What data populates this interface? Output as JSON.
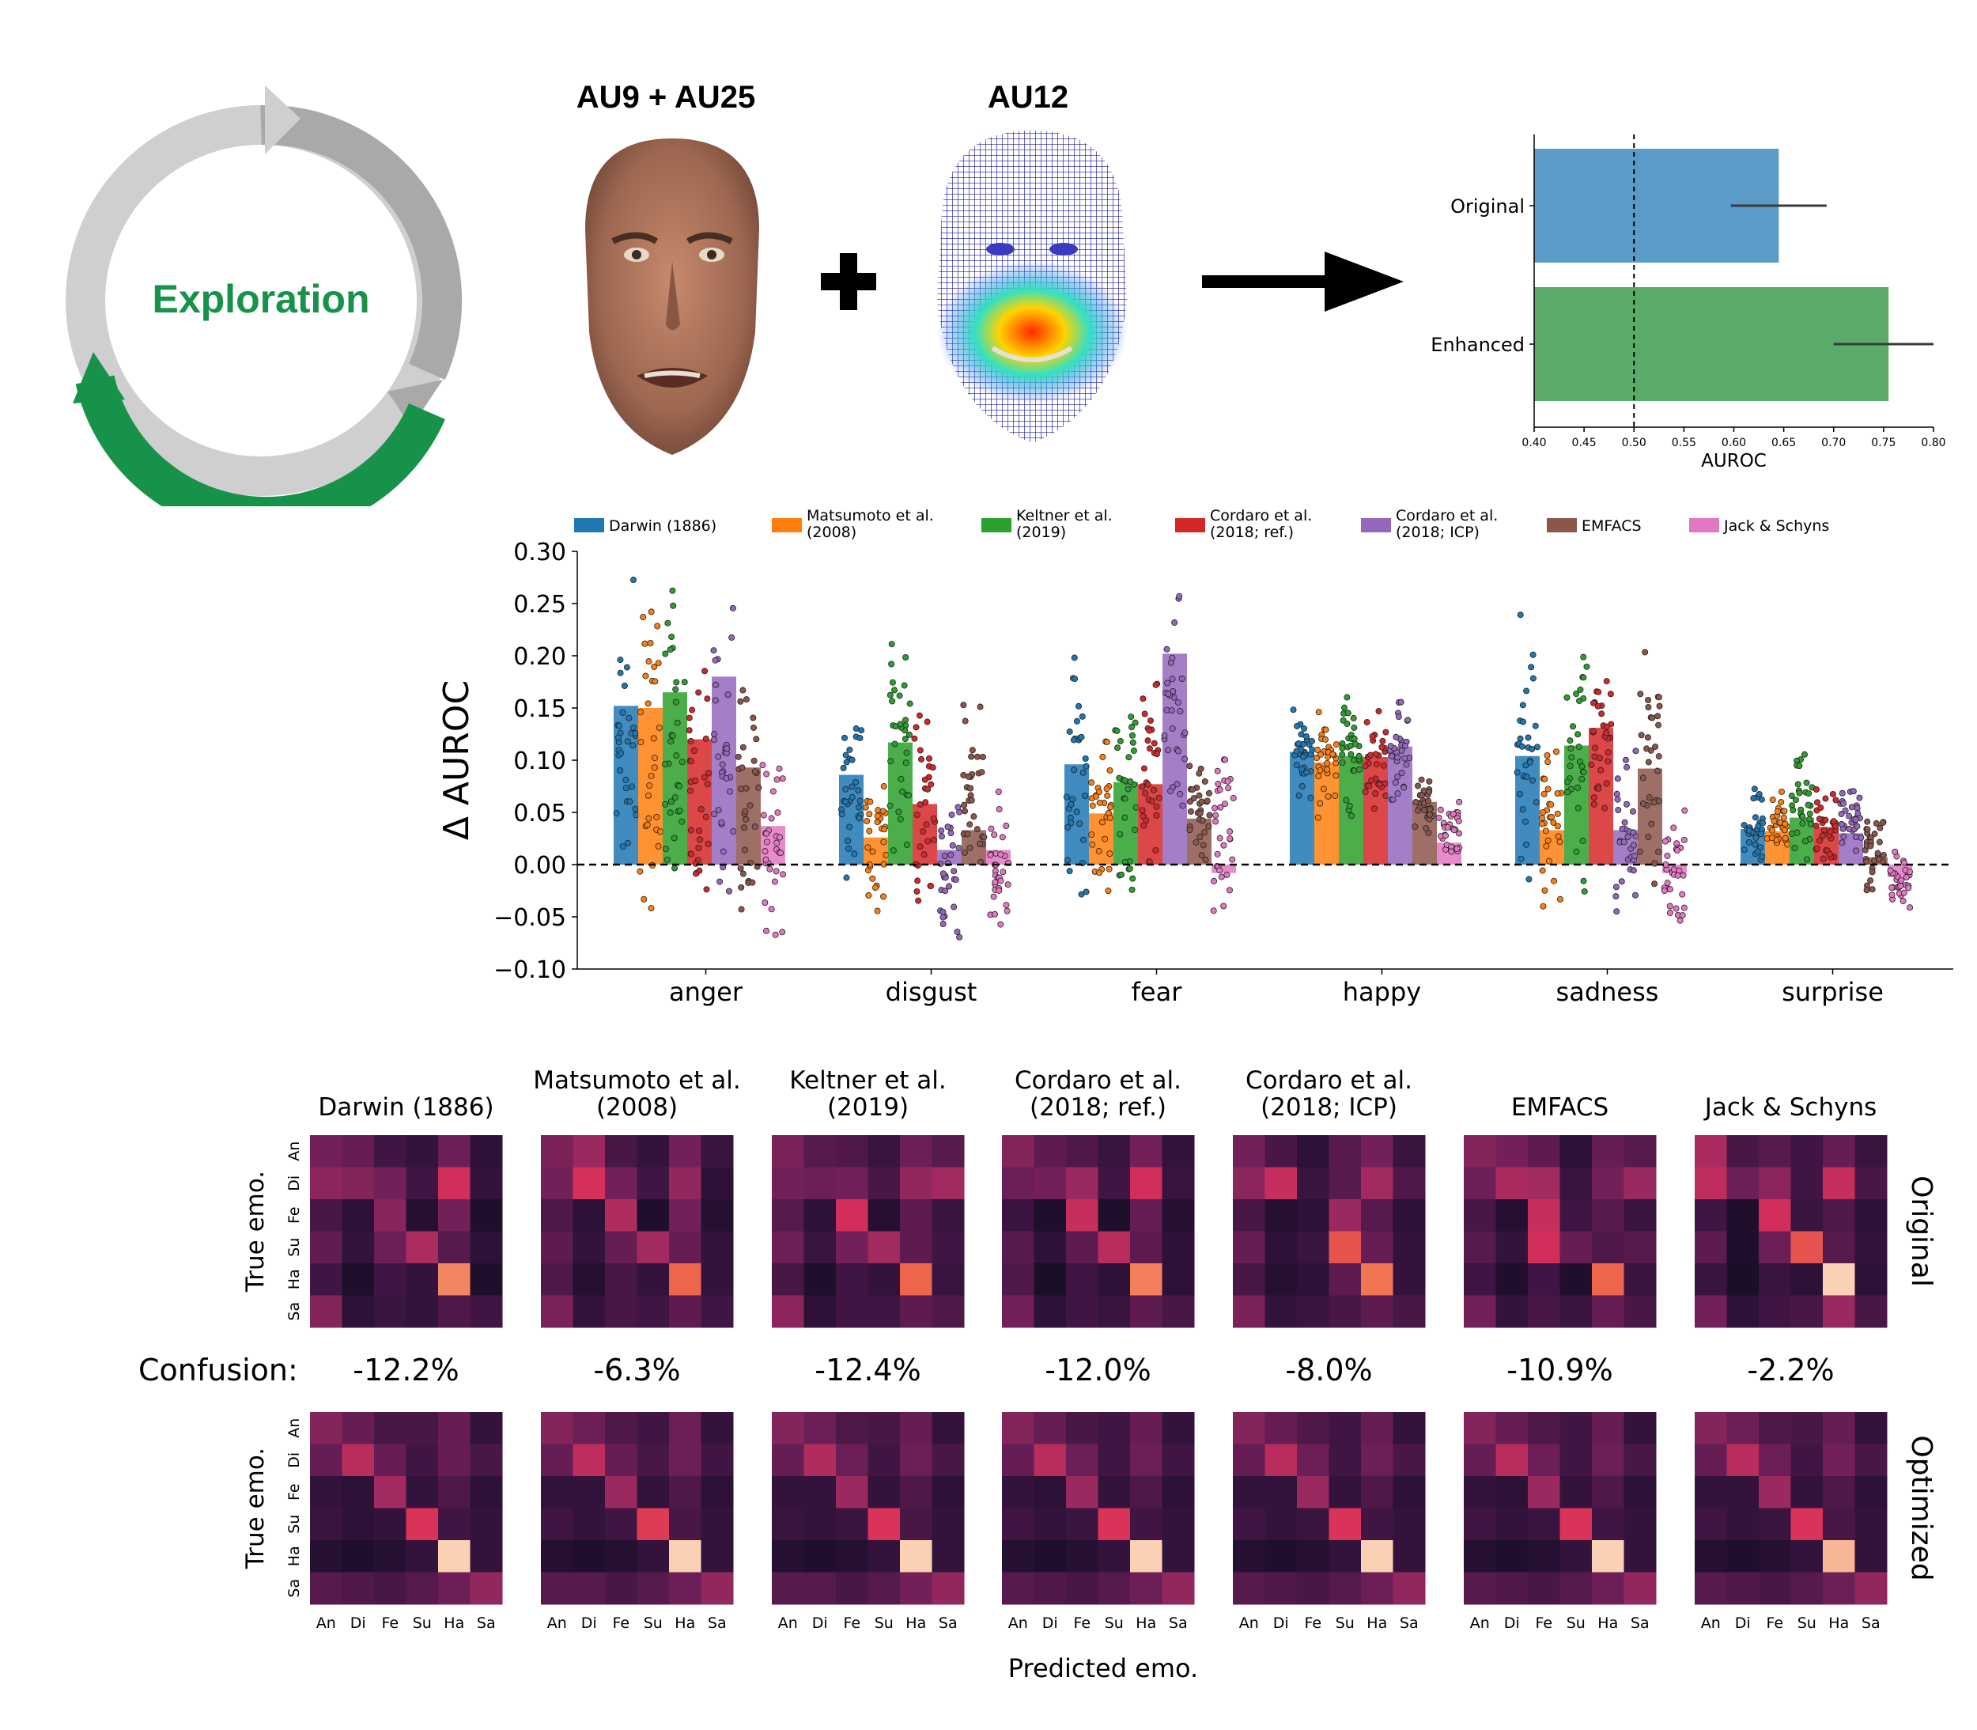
{
  "top": {
    "cycle_label": "Exploration",
    "face1_title": "AU9 + AU25",
    "face2_title": "AU12",
    "colors": {
      "gray_light": "#cfcfcf",
      "gray_dark": "#a9a9a9",
      "green": "#17924a"
    }
  },
  "chart_data": [
    {
      "type": "bar",
      "orientation": "horizontal",
      "categories": [
        "Original",
        "Enhanced"
      ],
      "values": [
        0.645,
        0.755
      ],
      "errors": [
        [
          0.597,
          0.693
        ],
        [
          0.7,
          0.8
        ]
      ],
      "colors": [
        "#5b9bc7",
        "#5aab6a"
      ],
      "xlabel": "AUROC",
      "xlim": [
        0.4,
        0.8
      ],
      "xticks": [
        "0.40",
        "0.45",
        "0.50",
        "0.55",
        "0.60",
        "0.65",
        "0.70",
        "0.75",
        "0.80"
      ],
      "reference_line": 0.5
    },
    {
      "type": "bar",
      "ylabel": "Δ AUROC",
      "ylim": [
        -0.1,
        0.3
      ],
      "yticks": [
        "−0.10",
        "−0.05",
        "0.00",
        "0.05",
        "0.10",
        "0.15",
        "0.20",
        "0.25",
        "0.30"
      ],
      "categories": [
        "anger",
        "disgust",
        "fear",
        "happy",
        "sadness",
        "surprise"
      ],
      "legend_position": "top",
      "series": [
        {
          "name": "Darwin (1886)",
          "color": "#1f77b4",
          "values": [
            0.152,
            0.086,
            0.096,
            0.108,
            0.104,
            0.034
          ],
          "spread": [
            -0.04,
            0.29,
            -0.04,
            0.19,
            -0.04,
            0.21,
            0.055,
            0.16,
            -0.03,
            0.25,
            0.0,
            0.075
          ]
        },
        {
          "name": "Matsumoto et al.\n(2008)",
          "color": "#ff7f0e",
          "values": [
            0.15,
            0.026,
            0.049,
            0.098,
            0.033,
            0.032
          ],
          "spread": [
            -0.06,
            0.295,
            -0.05,
            0.09,
            -0.04,
            0.14,
            0.04,
            0.15,
            -0.045,
            0.125,
            0.0,
            0.075
          ]
        },
        {
          "name": "Keltner et al.\n(2019)",
          "color": "#2ca02c",
          "values": [
            0.165,
            0.117,
            0.079,
            0.104,
            0.114,
            0.045
          ],
          "spread": [
            -0.045,
            0.29,
            0.0,
            0.225,
            -0.04,
            0.19,
            0.04,
            0.17,
            -0.03,
            0.225,
            0.0,
            0.115
          ]
        },
        {
          "name": "Cordaro et al.\n(2018; ref.)",
          "color": "#d62728",
          "values": [
            0.12,
            0.058,
            0.077,
            0.103,
            0.131,
            0.036
          ],
          "spread": [
            -0.045,
            0.205,
            -0.055,
            0.165,
            -0.02,
            0.225,
            0.045,
            0.155,
            0.03,
            0.22,
            0.0,
            0.09
          ]
        },
        {
          "name": "Cordaro et al.\n(2018; ICP)",
          "color": "#9467bd",
          "values": [
            0.18,
            0.014,
            0.202,
            0.113,
            0.033,
            0.03
          ],
          "spread": [
            -0.05,
            0.285,
            -0.075,
            0.075,
            0.03,
            0.295,
            0.05,
            0.17,
            -0.06,
            0.115,
            0.0,
            0.085
          ]
        },
        {
          "name": "EMFACS",
          "color": "#8c564b",
          "values": [
            0.093,
            0.033,
            0.044,
            0.06,
            0.092,
            0.007
          ],
          "spread": [
            -0.075,
            0.185,
            -0.025,
            0.17,
            -0.005,
            0.105,
            0.025,
            0.09,
            -0.025,
            0.21,
            -0.035,
            0.06
          ]
        },
        {
          "name": "Jack & Schyns",
          "color": "#e377c2",
          "values": [
            0.037,
            0.014,
            -0.008,
            0.021,
            -0.008,
            -0.012
          ],
          "spread": [
            -0.09,
            0.13,
            -0.07,
            0.075,
            -0.06,
            0.115,
            0.0,
            0.065,
            -0.075,
            0.07,
            -0.045,
            0.015
          ]
        }
      ]
    },
    {
      "type": "heatmap",
      "xlabel": "Predicted emo.",
      "ylabel": "True emo.",
      "row_titles": [
        "Original",
        "Optimized"
      ],
      "confusion_label": "Confusion:",
      "x_ticks": [
        "An",
        "Di",
        "Fe",
        "Su",
        "Ha",
        "Sa"
      ],
      "y_ticks": [
        "An",
        "Di",
        "Fe",
        "Su",
        "Ha",
        "Sa"
      ],
      "colormap": [
        "#0d0b1e",
        "#3a1440",
        "#6e1f57",
        "#a52b61",
        "#d92f5a",
        "#f06b4a",
        "#f6a57d",
        "#fbe2c9"
      ],
      "models": [
        {
          "title": "Darwin (1886)",
          "confusion": "-12.2%",
          "original": [
            [
              0.3,
              0.26,
              0.16,
              0.12,
              0.28,
              0.1
            ],
            [
              0.36,
              0.34,
              0.3,
              0.16,
              0.55,
              0.12
            ],
            [
              0.18,
              0.1,
              0.35,
              0.08,
              0.3,
              0.06
            ],
            [
              0.25,
              0.12,
              0.28,
              0.45,
              0.22,
              0.1
            ],
            [
              0.16,
              0.06,
              0.16,
              0.12,
              0.78,
              0.06
            ],
            [
              0.34,
              0.1,
              0.14,
              0.12,
              0.2,
              0.16
            ]
          ],
          "optimized": [
            [
              0.34,
              0.26,
              0.18,
              0.18,
              0.26,
              0.12
            ],
            [
              0.26,
              0.48,
              0.26,
              0.16,
              0.26,
              0.18
            ],
            [
              0.12,
              0.1,
              0.42,
              0.12,
              0.2,
              0.1
            ],
            [
              0.14,
              0.1,
              0.12,
              0.58,
              0.16,
              0.12
            ],
            [
              0.08,
              0.06,
              0.08,
              0.12,
              0.96,
              0.12
            ],
            [
              0.22,
              0.2,
              0.18,
              0.22,
              0.28,
              0.38
            ]
          ]
        },
        {
          "title": "Matsumoto et al.\n(2008)",
          "confusion": "-6.3%",
          "original": [
            [
              0.32,
              0.4,
              0.18,
              0.12,
              0.3,
              0.14
            ],
            [
              0.3,
              0.56,
              0.3,
              0.16,
              0.38,
              0.1
            ],
            [
              0.2,
              0.1,
              0.46,
              0.06,
              0.3,
              0.08
            ],
            [
              0.24,
              0.12,
              0.26,
              0.42,
              0.26,
              0.12
            ],
            [
              0.2,
              0.08,
              0.18,
              0.12,
              0.7,
              0.12
            ],
            [
              0.32,
              0.12,
              0.18,
              0.16,
              0.24,
              0.16
            ]
          ],
          "optimized": [
            [
              0.34,
              0.28,
              0.2,
              0.16,
              0.28,
              0.12
            ],
            [
              0.26,
              0.5,
              0.26,
              0.18,
              0.28,
              0.16
            ],
            [
              0.12,
              0.12,
              0.4,
              0.12,
              0.2,
              0.1
            ],
            [
              0.16,
              0.12,
              0.16,
              0.6,
              0.18,
              0.12
            ],
            [
              0.08,
              0.06,
              0.08,
              0.12,
              0.96,
              0.12
            ],
            [
              0.22,
              0.22,
              0.18,
              0.22,
              0.28,
              0.38
            ]
          ]
        },
        {
          "title": "Keltner et al.\n(2019)",
          "confusion": "-12.4%",
          "original": [
            [
              0.32,
              0.22,
              0.2,
              0.14,
              0.28,
              0.22
            ],
            [
              0.3,
              0.28,
              0.3,
              0.18,
              0.38,
              0.42
            ],
            [
              0.22,
              0.1,
              0.55,
              0.08,
              0.24,
              0.14
            ],
            [
              0.28,
              0.14,
              0.3,
              0.42,
              0.24,
              0.16
            ],
            [
              0.18,
              0.06,
              0.16,
              0.12,
              0.7,
              0.14
            ],
            [
              0.36,
              0.1,
              0.16,
              0.16,
              0.24,
              0.2
            ]
          ],
          "optimized": [
            [
              0.34,
              0.28,
              0.2,
              0.18,
              0.26,
              0.12
            ],
            [
              0.26,
              0.46,
              0.28,
              0.16,
              0.28,
              0.18
            ],
            [
              0.12,
              0.12,
              0.4,
              0.12,
              0.2,
              0.1
            ],
            [
              0.14,
              0.12,
              0.14,
              0.58,
              0.18,
              0.12
            ],
            [
              0.08,
              0.06,
              0.08,
              0.12,
              0.96,
              0.12
            ],
            [
              0.22,
              0.22,
              0.18,
              0.22,
              0.3,
              0.38
            ]
          ]
        },
        {
          "title": "Cordaro et al.\n(2018; ref.)",
          "confusion": "-12.0%",
          "original": [
            [
              0.34,
              0.24,
              0.2,
              0.14,
              0.3,
              0.12
            ],
            [
              0.28,
              0.3,
              0.4,
              0.16,
              0.55,
              0.14
            ],
            [
              0.14,
              0.06,
              0.52,
              0.06,
              0.26,
              0.08
            ],
            [
              0.22,
              0.1,
              0.24,
              0.48,
              0.24,
              0.1
            ],
            [
              0.2,
              0.04,
              0.16,
              0.1,
              0.76,
              0.1
            ],
            [
              0.3,
              0.1,
              0.16,
              0.14,
              0.24,
              0.18
            ]
          ],
          "optimized": [
            [
              0.34,
              0.26,
              0.18,
              0.16,
              0.26,
              0.12
            ],
            [
              0.26,
              0.48,
              0.28,
              0.16,
              0.28,
              0.16
            ],
            [
              0.12,
              0.1,
              0.4,
              0.12,
              0.2,
              0.1
            ],
            [
              0.16,
              0.12,
              0.14,
              0.58,
              0.16,
              0.12
            ],
            [
              0.08,
              0.06,
              0.08,
              0.12,
              0.96,
              0.12
            ],
            [
              0.22,
              0.2,
              0.18,
              0.22,
              0.28,
              0.38
            ]
          ]
        },
        {
          "title": "Cordaro et al.\n(2018; ICP)",
          "confusion": "-8.0%",
          "original": [
            [
              0.3,
              0.18,
              0.1,
              0.22,
              0.3,
              0.14
            ],
            [
              0.36,
              0.52,
              0.14,
              0.22,
              0.42,
              0.2
            ],
            [
              0.18,
              0.08,
              0.1,
              0.4,
              0.22,
              0.1
            ],
            [
              0.26,
              0.1,
              0.14,
              0.66,
              0.26,
              0.12
            ],
            [
              0.18,
              0.08,
              0.1,
              0.24,
              0.74,
              0.12
            ],
            [
              0.32,
              0.12,
              0.14,
              0.18,
              0.24,
              0.18
            ]
          ],
          "optimized": [
            [
              0.34,
              0.26,
              0.2,
              0.16,
              0.26,
              0.12
            ],
            [
              0.26,
              0.48,
              0.28,
              0.16,
              0.28,
              0.18
            ],
            [
              0.12,
              0.12,
              0.4,
              0.12,
              0.2,
              0.1
            ],
            [
              0.16,
              0.12,
              0.14,
              0.58,
              0.16,
              0.12
            ],
            [
              0.08,
              0.06,
              0.08,
              0.12,
              0.96,
              0.12
            ],
            [
              0.22,
              0.2,
              0.18,
              0.22,
              0.28,
              0.38
            ]
          ]
        },
        {
          "title": "EMFACS",
          "confusion": "-10.9%",
          "original": [
            [
              0.34,
              0.3,
              0.24,
              0.1,
              0.26,
              0.22
            ],
            [
              0.28,
              0.44,
              0.42,
              0.14,
              0.3,
              0.4
            ],
            [
              0.18,
              0.08,
              0.52,
              0.16,
              0.22,
              0.14
            ],
            [
              0.22,
              0.12,
              0.55,
              0.26,
              0.2,
              0.22
            ],
            [
              0.16,
              0.06,
              0.16,
              0.06,
              0.7,
              0.14
            ],
            [
              0.3,
              0.12,
              0.18,
              0.14,
              0.26,
              0.18
            ]
          ],
          "optimized": [
            [
              0.34,
              0.26,
              0.2,
              0.16,
              0.26,
              0.12
            ],
            [
              0.26,
              0.48,
              0.28,
              0.16,
              0.28,
              0.18
            ],
            [
              0.12,
              0.1,
              0.4,
              0.12,
              0.2,
              0.1
            ],
            [
              0.16,
              0.12,
              0.14,
              0.58,
              0.16,
              0.12
            ],
            [
              0.08,
              0.06,
              0.08,
              0.12,
              0.96,
              0.12
            ],
            [
              0.22,
              0.2,
              0.18,
              0.22,
              0.28,
              0.38
            ]
          ]
        },
        {
          "title": "Jack & Schyns",
          "confusion": "-2.2%",
          "original": [
            [
              0.44,
              0.18,
              0.22,
              0.16,
              0.26,
              0.14
            ],
            [
              0.5,
              0.28,
              0.36,
              0.16,
              0.52,
              0.18
            ],
            [
              0.16,
              0.06,
              0.55,
              0.14,
              0.2,
              0.1
            ],
            [
              0.24,
              0.06,
              0.28,
              0.66,
              0.22,
              0.12
            ],
            [
              0.14,
              0.04,
              0.14,
              0.1,
              0.96,
              0.1
            ],
            [
              0.3,
              0.1,
              0.16,
              0.18,
              0.4,
              0.18
            ]
          ],
          "optimized": [
            [
              0.34,
              0.28,
              0.2,
              0.18,
              0.26,
              0.12
            ],
            [
              0.26,
              0.48,
              0.28,
              0.16,
              0.3,
              0.18
            ],
            [
              0.12,
              0.12,
              0.4,
              0.12,
              0.2,
              0.1
            ],
            [
              0.16,
              0.12,
              0.14,
              0.58,
              0.18,
              0.12
            ],
            [
              0.08,
              0.06,
              0.08,
              0.12,
              0.9,
              0.12
            ],
            [
              0.22,
              0.2,
              0.18,
              0.22,
              0.28,
              0.38
            ]
          ]
        }
      ]
    }
  ]
}
